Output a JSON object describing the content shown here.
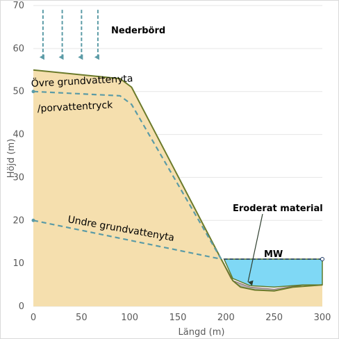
{
  "chart_data": {
    "type": "area",
    "xlabel": "Längd (m)",
    "ylabel": "Höjd (m)",
    "xlim": [
      0,
      300
    ],
    "ylim": [
      0,
      70
    ],
    "x_ticks": [
      "0",
      "50",
      "100",
      "150",
      "200",
      "250",
      "300"
    ],
    "y_ticks": [
      "0",
      "10",
      "20",
      "30",
      "40",
      "50",
      "60",
      "70"
    ],
    "grid": "horizontal",
    "series": [
      {
        "name": "",
        "role": "terrain",
        "color": "#F5DFAE",
        "outline": "#6B7A2A",
        "x": [
          0,
          90,
          102,
          195,
          207,
          215,
          230,
          250,
          270,
          300,
          300,
          0
        ],
        "y": [
          55,
          53,
          51,
          11,
          6,
          4.5,
          3.8,
          3.6,
          4.5,
          5,
          0,
          0
        ]
      },
      {
        "name": "",
        "role": "eroded-material",
        "color": "#B3B3B3",
        "x": [
          197,
          207,
          225,
          250,
          280,
          270,
          250,
          230,
          215,
          205
        ],
        "y": [
          10,
          6,
          4.5,
          4,
          5,
          4.5,
          3.6,
          3.8,
          4.5,
          6.5
        ]
      },
      {
        "name": "",
        "role": "water",
        "color": "#7FD8F5",
        "x": [
          198,
          300,
          300,
          280,
          250,
          225,
          207
        ],
        "y": [
          11,
          11,
          5,
          5,
          4.5,
          4.8,
          6.5
        ]
      },
      {
        "name": "",
        "role": "upper-groundwater",
        "color": "#5B9BA6",
        "x": [
          0,
          90,
          102,
          195
        ],
        "y": [
          50,
          49,
          47,
          11
        ]
      },
      {
        "name": "",
        "role": "lower-groundwater",
        "color": "#5B9BA6",
        "x": [
          0,
          195
        ],
        "y": [
          20,
          11
        ]
      },
      {
        "name": "",
        "role": "water-level",
        "color": "#1F3864",
        "x": [
          198,
          300
        ],
        "y": [
          11,
          11
        ]
      }
    ],
    "rain_arrows_x": [
      10,
      30,
      50,
      67
    ],
    "rain_arrows_y": [
      69,
      58
    ],
    "annotations": {
      "precipitation": "Nederbörd",
      "upper_gw_line1": "Övre grundvattenyta",
      "upper_gw_line2": "/porvattentryck",
      "lower_gw": "Undre grundvattenyta",
      "eroded": "Eroderat material",
      "water_level": "MW"
    }
  }
}
